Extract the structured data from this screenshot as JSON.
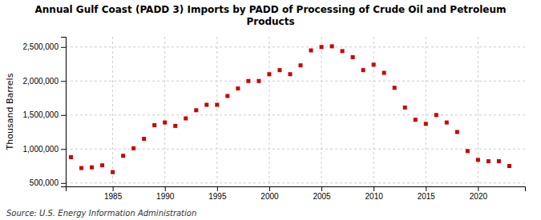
{
  "chart_data": {
    "type": "scatter",
    "title": "Annual Gulf Coast (PADD 3) Imports by PADD of Processing of Crude Oil and Petroleum\nProducts",
    "ylabel": "Thousand Barrels",
    "annotations": [
      "Source: U.S. Energy Information Administration"
    ],
    "x": [
      1981,
      1982,
      1983,
      1984,
      1985,
      1986,
      1987,
      1988,
      1989,
      1990,
      1991,
      1992,
      1993,
      1994,
      1995,
      1996,
      1997,
      1998,
      1999,
      2000,
      2001,
      2002,
      2003,
      2004,
      2005,
      2006,
      2007,
      2008,
      2009,
      2010,
      2011,
      2012,
      2013,
      2014,
      2015,
      2016,
      2017,
      2018,
      2019,
      2020,
      2021,
      2022,
      2023
    ],
    "values": [
      880000,
      720000,
      730000,
      760000,
      660000,
      900000,
      1010000,
      1150000,
      1350000,
      1390000,
      1340000,
      1450000,
      1570000,
      1650000,
      1650000,
      1780000,
      1890000,
      2000000,
      2000000,
      2100000,
      2160000,
      2100000,
      2230000,
      2450000,
      2500000,
      2510000,
      2440000,
      2350000,
      2160000,
      2240000,
      2120000,
      1900000,
      1610000,
      1430000,
      1370000,
      1500000,
      1390000,
      1250000,
      970000,
      840000,
      820000,
      820000,
      750000
    ],
    "color": "#CC0000",
    "marker": "square",
    "xlim": [
      1980.5,
      2024.5
    ],
    "xticks": [
      1985,
      1990,
      1995,
      2000,
      2005,
      2010,
      2015,
      2020
    ],
    "ylim": [
      450000,
      2650000
    ],
    "yticks": [
      {
        "value": 500000,
        "label": "500,000"
      },
      {
        "value": 1000000,
        "label": "1,000,000"
      },
      {
        "value": 1500000,
        "label": "1,500,000"
      },
      {
        "value": 2000000,
        "label": "2,000,000"
      },
      {
        "value": 2500000,
        "label": "2,500,000"
      }
    ],
    "grid": true
  }
}
